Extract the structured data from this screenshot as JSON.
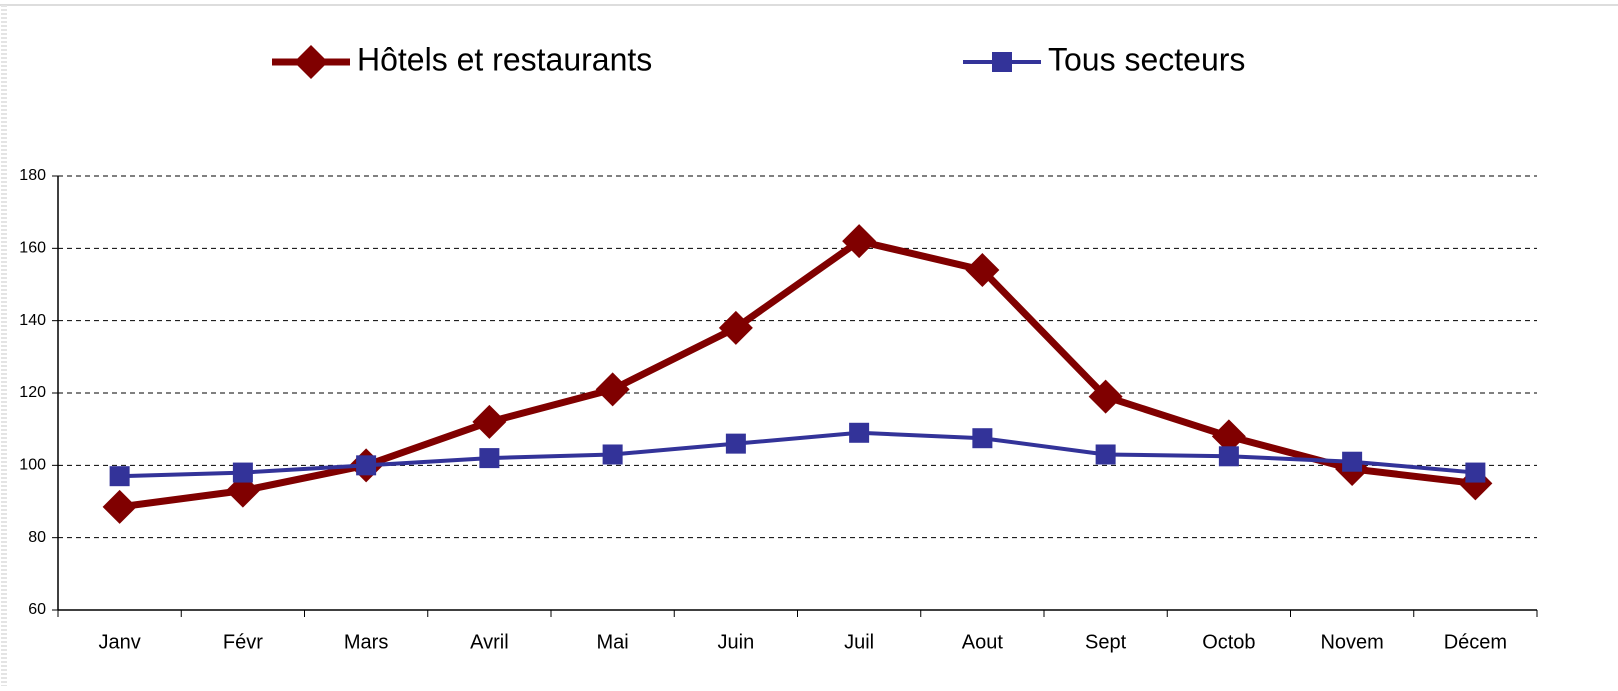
{
  "chart_data": {
    "type": "line",
    "categories": [
      "Janv",
      "Févr",
      "Mars",
      "Avril",
      "Mai",
      "Juin",
      "Juil",
      "Aout",
      "Sept",
      "Octob",
      "Novem",
      "Décem"
    ],
    "series": [
      {
        "name": "Hôtels et restaurants",
        "color": "#800000",
        "marker": "diamond",
        "values": [
          88.5,
          93,
          100,
          112,
          121,
          138,
          162,
          154,
          119,
          108,
          99,
          95
        ]
      },
      {
        "name": "Tous secteurs",
        "color": "#333399",
        "marker": "square",
        "values": [
          97,
          98,
          100,
          102,
          103,
          106,
          109,
          107.5,
          103,
          102.5,
          101,
          98
        ]
      }
    ],
    "ylim": [
      60,
      180
    ],
    "yticks": [
      60,
      80,
      100,
      120,
      140,
      160,
      180
    ],
    "grid": true,
    "legend": "top"
  }
}
